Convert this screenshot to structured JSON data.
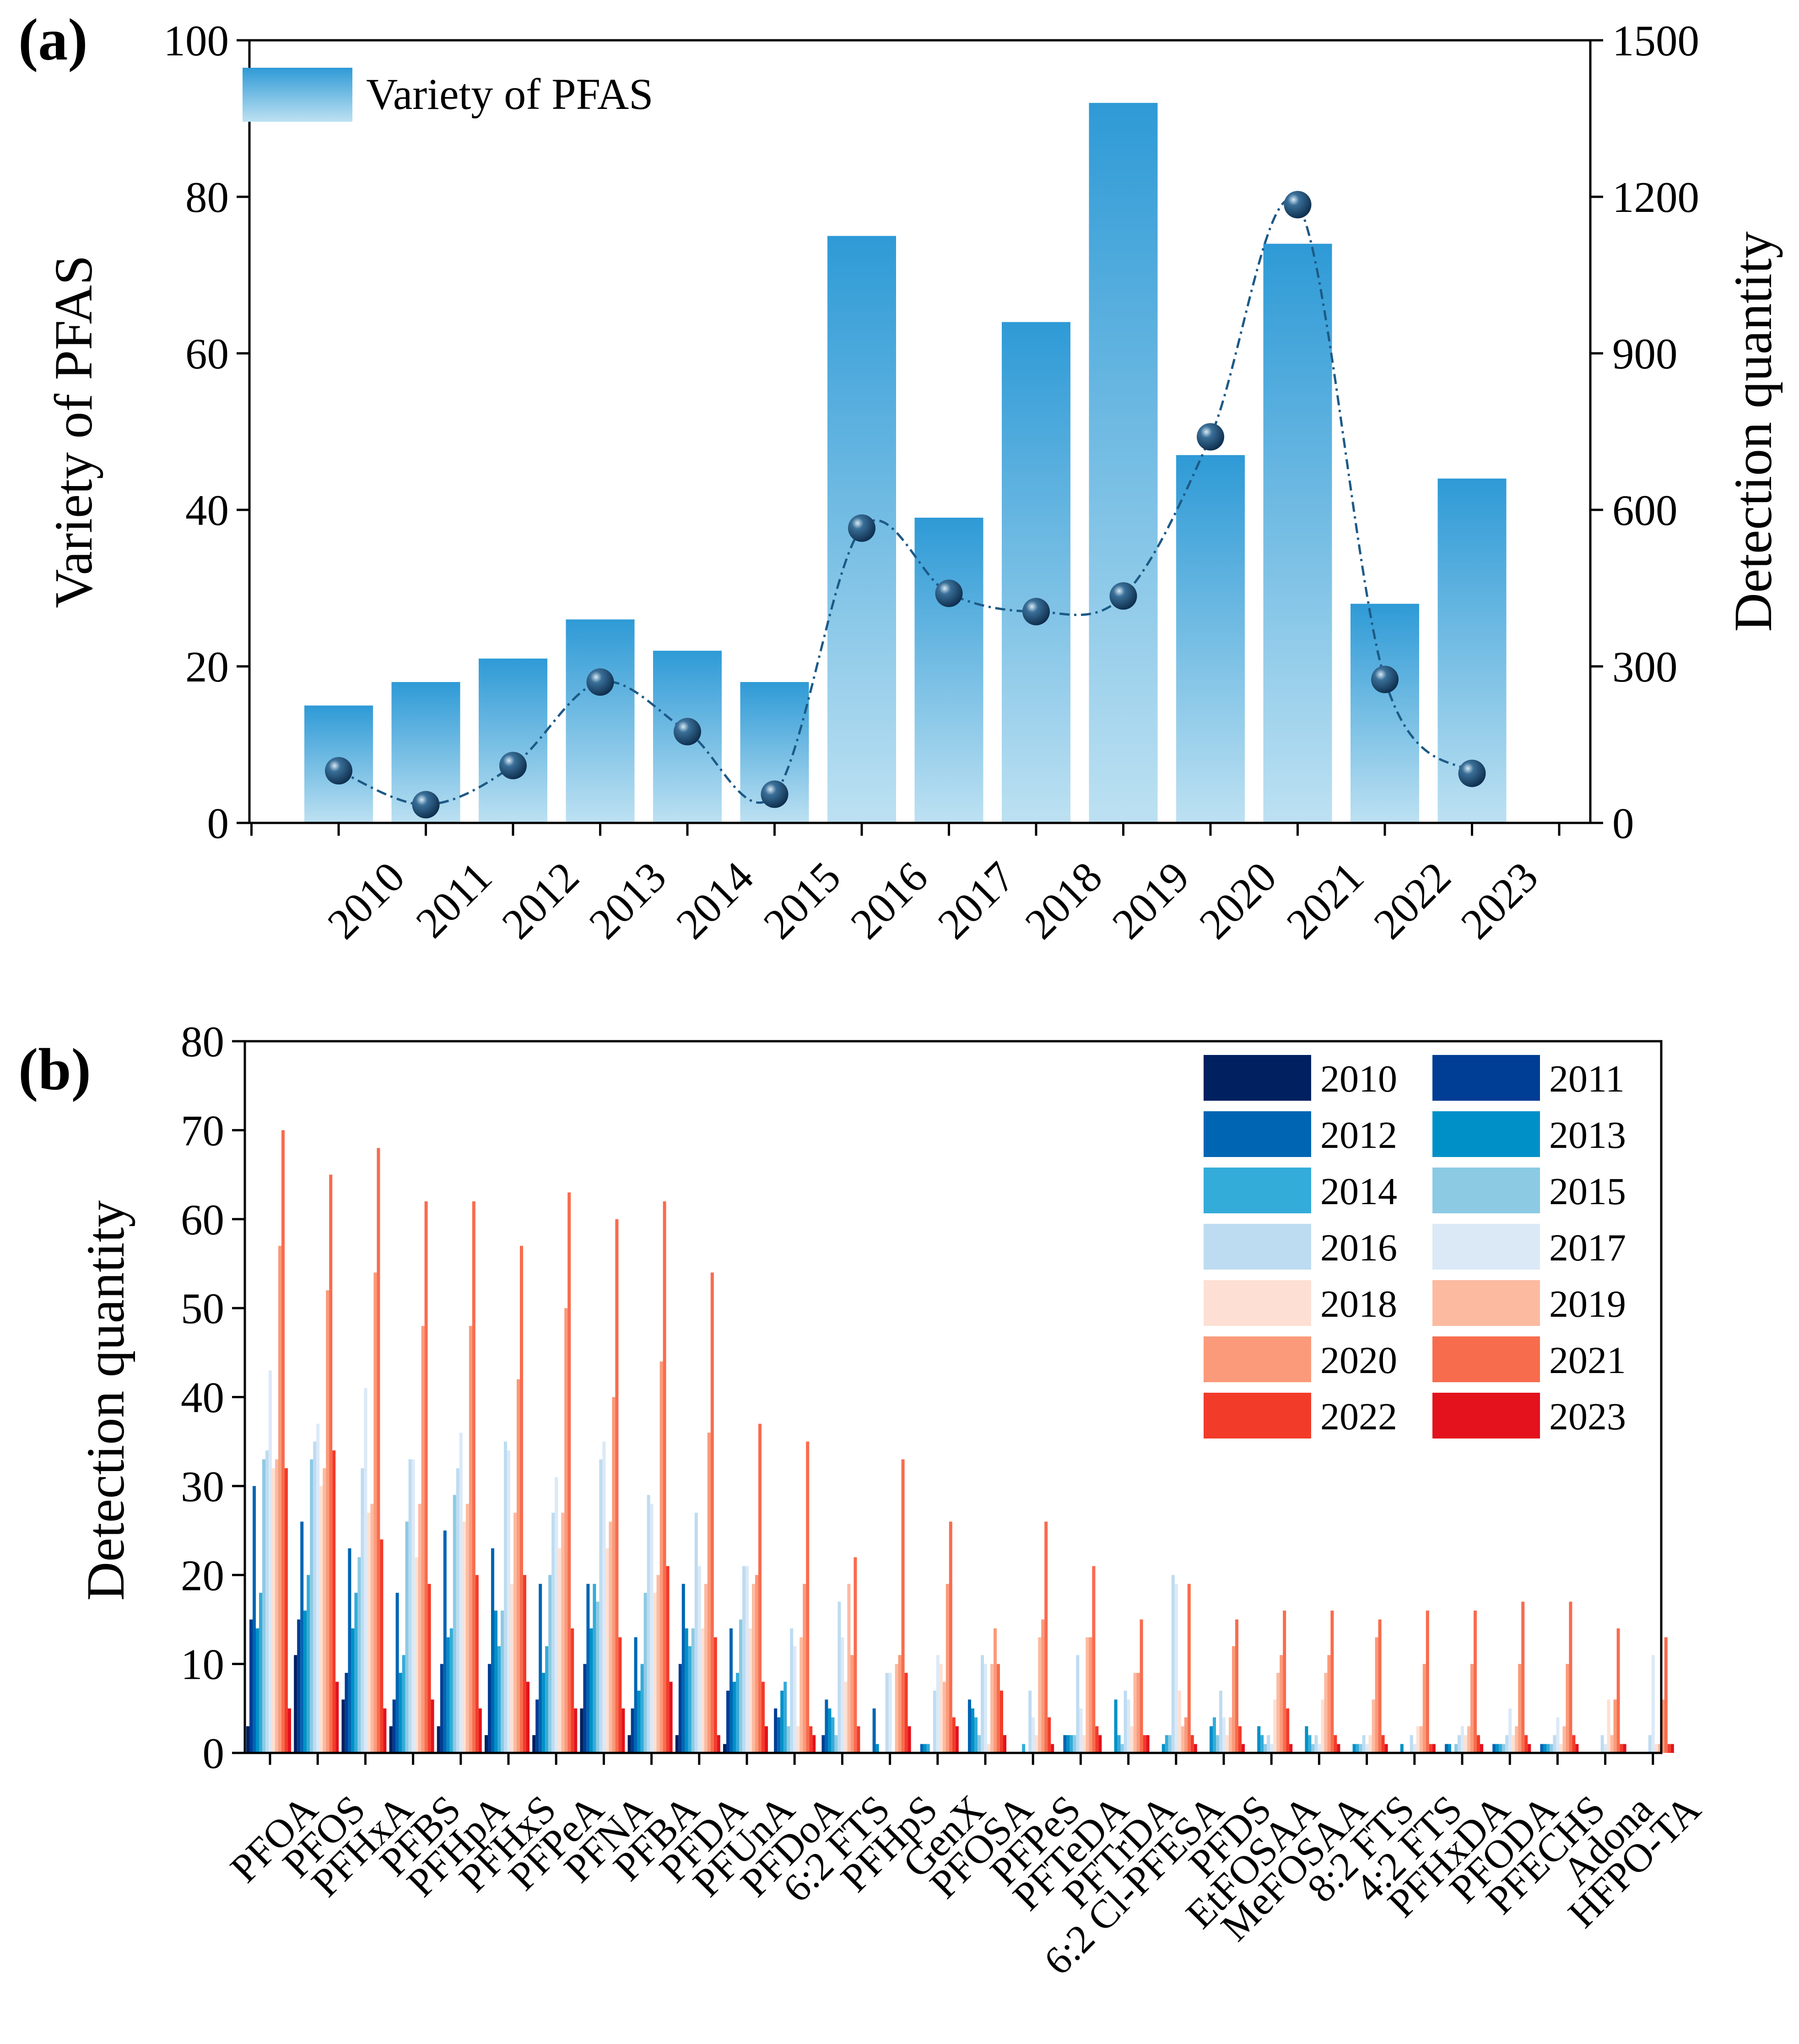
{
  "chart_data": [
    {
      "panel_label": "(a)",
      "type": "bar",
      "categories": [
        "2010",
        "2011",
        "2012",
        "2013",
        "2014",
        "2015",
        "2016",
        "2017",
        "2018",
        "2019",
        "2020",
        "2021",
        "2022",
        "2023"
      ],
      "series": [
        {
          "name": "Variety of PFAS",
          "axis": "left",
          "type": "bar",
          "values": [
            15,
            18,
            21,
            26,
            22,
            18,
            75,
            39,
            64,
            92,
            47,
            74,
            28,
            44
          ]
        },
        {
          "name": "Detection quantity",
          "axis": "right",
          "type": "line",
          "values": [
            100,
            35,
            110,
            270,
            175,
            55,
            565,
            440,
            405,
            435,
            740,
            1185,
            275,
            95
          ]
        }
      ],
      "ylabel": "Variety of PFAS",
      "y2label": "Detection quantity",
      "ylim": [
        0,
        100
      ],
      "y2lim": [
        0,
        1500
      ],
      "yticks": [
        "0",
        "20",
        "40",
        "60",
        "80",
        "100"
      ],
      "y2ticks": [
        "0",
        "300",
        "600",
        "900",
        "1200",
        "1500"
      ],
      "legend": [
        "Variety of PFAS"
      ],
      "legend_position": "top-left",
      "colors": {
        "bar_top": "#2e9ad6",
        "bar_bottom": "#bde1f2",
        "line": "#1d5a86",
        "marker": "#1b4a72"
      }
    },
    {
      "panel_label": "(b)",
      "type": "bar",
      "categories": [
        "PFOA",
        "PFOS",
        "PFHxA",
        "PFBS",
        "PFHpA",
        "PFHxS",
        "PFPeA",
        "PFNA",
        "PFBA",
        "PFDA",
        "PFUnA",
        "PFDoA",
        "6:2 FTS",
        "PFHpS",
        "GenX",
        "PFOSA",
        "PFPeS",
        "PFTeDA",
        "PFTrDA",
        "6:2 Cl-PFESA",
        "PFDS",
        "EtFOSAA",
        "MeFOSAA",
        "8:2 FTS",
        "4:2 FTS",
        "PFHxDA",
        "PFODA",
        "PFECHS",
        "Adona",
        "HFPO-TA"
      ],
      "ylabel": "Detection quantity",
      "ylim": [
        0,
        80
      ],
      "yticks": [
        "0",
        "10",
        "20",
        "30",
        "40",
        "50",
        "60",
        "70",
        "80"
      ],
      "legend_position": "top-right",
      "series": [
        {
          "name": "2010",
          "color": "#002060",
          "values": [
            3,
            11,
            6,
            3,
            3,
            2,
            2,
            5,
            2,
            2,
            1,
            0,
            0,
            0,
            0,
            0,
            0,
            0,
            0,
            0,
            0,
            0,
            0,
            0,
            0,
            0,
            0,
            0,
            0,
            0
          ]
        },
        {
          "name": "2011",
          "color": "#003d94",
          "values": [
            15,
            15,
            9,
            6,
            10,
            10,
            6,
            10,
            5,
            10,
            7,
            5,
            2,
            0,
            0,
            0,
            0,
            0,
            0,
            0,
            0,
            0,
            0,
            0,
            0,
            0,
            0,
            0,
            0,
            0
          ]
        },
        {
          "name": "2012",
          "color": "#0065b3",
          "values": [
            30,
            26,
            23,
            18,
            25,
            23,
            19,
            19,
            13,
            19,
            14,
            4,
            6,
            5,
            1,
            6,
            0,
            2,
            0,
            0,
            0,
            0,
            0,
            0,
            0,
            1,
            1,
            1,
            0,
            0
          ]
        },
        {
          "name": "2013",
          "color": "#0090c8",
          "values": [
            14,
            16,
            14,
            9,
            13,
            16,
            9,
            14,
            7,
            14,
            8,
            7,
            5,
            1,
            1,
            5,
            0,
            2,
            6,
            1,
            3,
            3,
            3,
            1,
            1,
            1,
            1,
            1,
            0,
            0
          ]
        },
        {
          "name": "2014",
          "color": "#33acd9",
          "values": [
            18,
            20,
            18,
            11,
            14,
            12,
            12,
            19,
            10,
            12,
            9,
            8,
            4,
            0,
            1,
            4,
            1,
            2,
            2,
            2,
            4,
            2,
            2,
            1,
            0,
            0,
            1,
            1,
            0,
            0
          ]
        },
        {
          "name": "2015",
          "color": "#8ccae4",
          "values": [
            33,
            33,
            22,
            26,
            29,
            16,
            20,
            17,
            18,
            14,
            15,
            3,
            2,
            0,
            0,
            2,
            0,
            2,
            1,
            2,
            2,
            1,
            1,
            1,
            0,
            1,
            1,
            1,
            0,
            0
          ]
        },
        {
          "name": "2016",
          "color": "#bedcf1",
          "values": [
            34,
            35,
            32,
            33,
            32,
            35,
            27,
            33,
            29,
            27,
            21,
            14,
            17,
            9,
            7,
            11,
            7,
            11,
            7,
            20,
            7,
            2,
            2,
            2,
            2,
            2,
            2,
            2,
            2,
            2
          ]
        },
        {
          "name": "2017",
          "color": "#dbe9f7",
          "values": [
            43,
            37,
            41,
            33,
            36,
            34,
            31,
            35,
            28,
            21,
            21,
            12,
            13,
            9,
            11,
            10,
            4,
            5,
            6,
            19,
            4,
            1,
            1,
            1,
            1,
            3,
            5,
            4,
            1,
            11
          ]
        },
        {
          "name": "2018",
          "color": "#fde0d3",
          "values": [
            32,
            30,
            27,
            22,
            26,
            19,
            23,
            23,
            18,
            14,
            14,
            3,
            8,
            0,
            10,
            1,
            2,
            2,
            3,
            7,
            2,
            6,
            6,
            2,
            3,
            2,
            2,
            1,
            6,
            1
          ]
        },
        {
          "name": "2019",
          "color": "#fcbaa0",
          "values": [
            33,
            32,
            28,
            28,
            28,
            27,
            27,
            26,
            20,
            19,
            19,
            13,
            19,
            10,
            8,
            10,
            13,
            13,
            9,
            3,
            4,
            9,
            9,
            6,
            3,
            3,
            3,
            3,
            2,
            1
          ]
        },
        {
          "name": "2020",
          "color": "#fb9a7a",
          "values": [
            57,
            52,
            54,
            48,
            48,
            42,
            50,
            40,
            44,
            36,
            20,
            19,
            11,
            11,
            19,
            14,
            15,
            13,
            9,
            4,
            12,
            11,
            11,
            13,
            10,
            10,
            10,
            10,
            6,
            6
          ]
        },
        {
          "name": "2021",
          "color": "#f86c4e",
          "values": [
            70,
            65,
            68,
            62,
            62,
            57,
            63,
            60,
            62,
            54,
            37,
            35,
            22,
            33,
            26,
            10,
            26,
            21,
            15,
            19,
            15,
            16,
            16,
            15,
            16,
            16,
            17,
            17,
            14,
            13
          ]
        },
        {
          "name": "2022",
          "color": "#f33b2a",
          "values": [
            32,
            34,
            24,
            19,
            20,
            20,
            14,
            13,
            21,
            13,
            8,
            3,
            3,
            9,
            4,
            7,
            4,
            3,
            2,
            2,
            3,
            5,
            2,
            2,
            1,
            2,
            2,
            2,
            1,
            1
          ]
        },
        {
          "name": "2023",
          "color": "#e3121c",
          "values": [
            5,
            8,
            5,
            6,
            5,
            8,
            5,
            5,
            8,
            2,
            3,
            2,
            0,
            3,
            3,
            2,
            1,
            2,
            2,
            1,
            1,
            1,
            1,
            1,
            1,
            1,
            1,
            1,
            1,
            1
          ]
        }
      ]
    }
  ]
}
